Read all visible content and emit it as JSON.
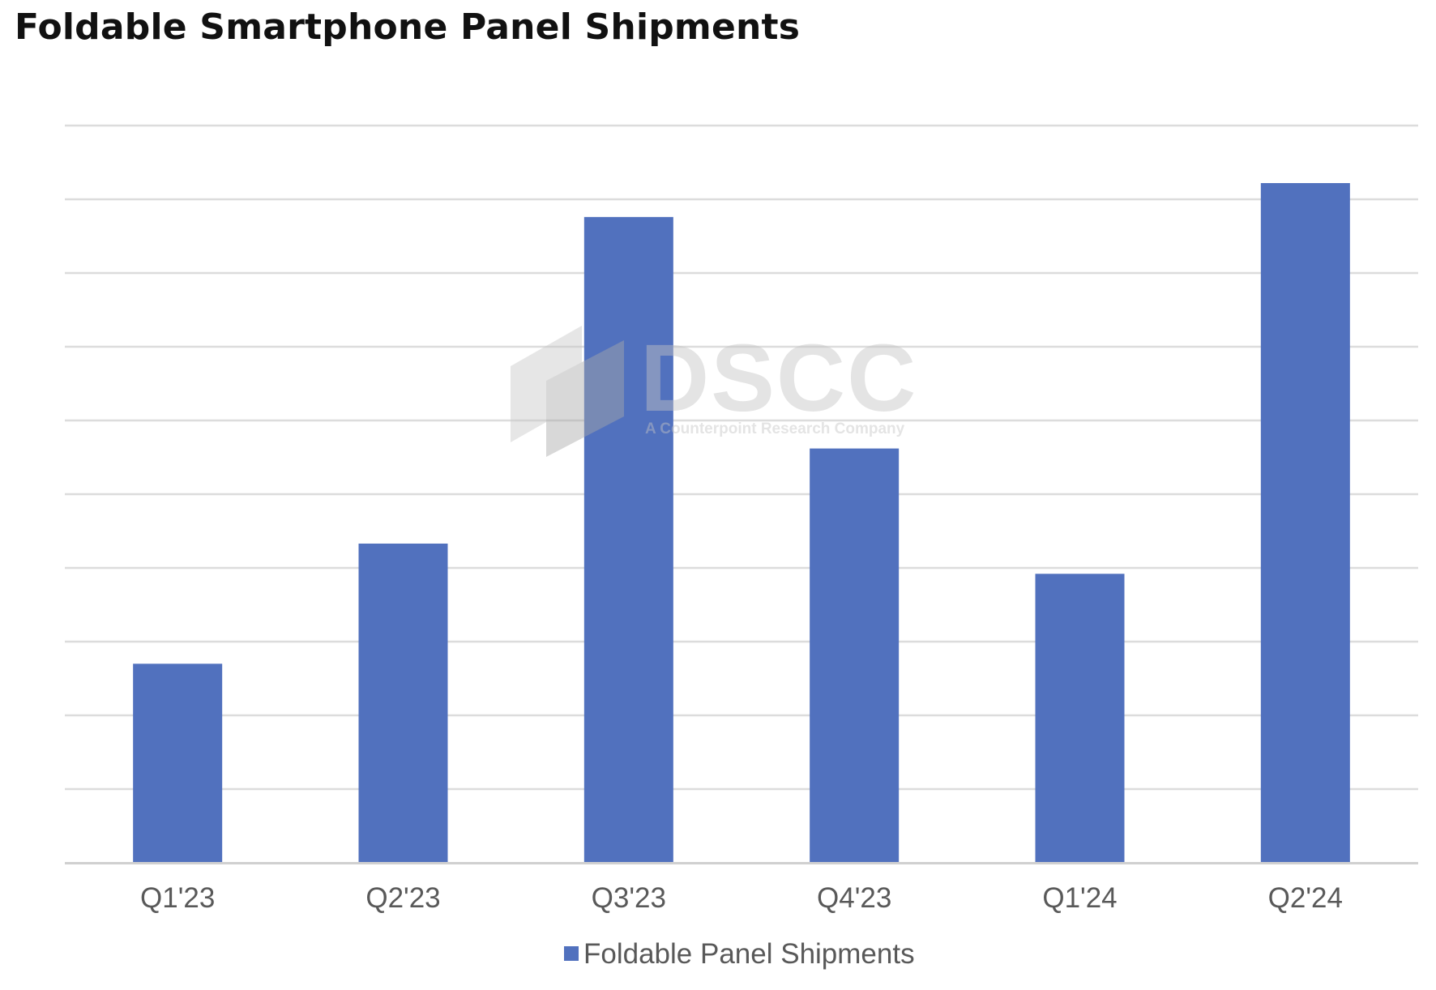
{
  "title": "Foldable Smartphone Panel Shipments",
  "watermark": {
    "brand": "DSCC",
    "tagline": "A Counterpoint Research Company"
  },
  "chart_data": {
    "type": "bar",
    "categories": [
      "Q1'23",
      "Q2'23",
      "Q3'23",
      "Q4'23",
      "Q1'24",
      "Q2'24"
    ],
    "series": [
      {
        "name": "Foldable Panel Shipments",
        "color": "#5171BE",
        "values": [
          2.7,
          4.33,
          8.76,
          5.62,
          3.92,
          9.22
        ]
      }
    ],
    "ylim": [
      0,
      10
    ],
    "y_tick_labels_shown": false,
    "grid": true,
    "legend_position": "bottom-center",
    "xlabel": "",
    "ylabel": ""
  }
}
